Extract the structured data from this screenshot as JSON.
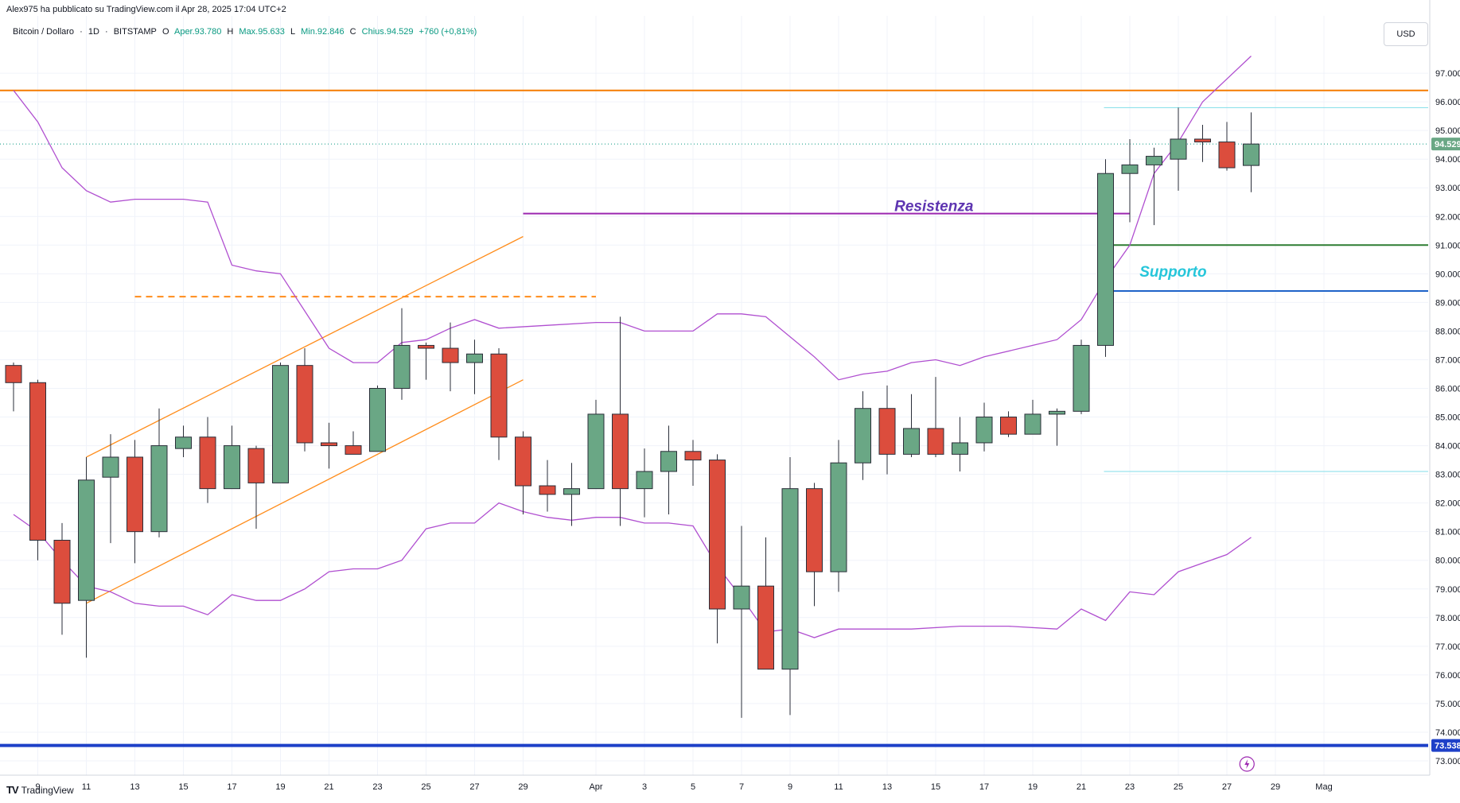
{
  "header": {
    "publisher_text": "Alex975 ha pubblicato su TradingView.com il Apr 28, 2025 17:04 UTC+2"
  },
  "legend": {
    "name": "Bitcoin / Dollaro",
    "interval": "1D",
    "exchange": "BITSTAMP",
    "open_label": "O",
    "open": "Aper.93.780",
    "high_label": "H",
    "high": "Max.95.633",
    "low_label": "L",
    "low": "Min.92.846",
    "close_label": "C",
    "close": "Chius.94.529",
    "change": "+760 (+0,81%)"
  },
  "currency": "USD",
  "footer": {
    "brand": "TradingView"
  },
  "colors": {
    "up": "#6aa785",
    "down": "#dc4d3d",
    "bollinger": "#b04fd0",
    "channel": "#ff8c1a",
    "resistance_line": "#9c27b0",
    "resistance_text": "#5e35b1",
    "support_text": "#26c6da",
    "green_level": "#2e7d32",
    "blue_level": "#1e63c8",
    "thick_level": "#1e40c8",
    "top_orange_level": "#f57c00"
  },
  "chart_data": {
    "type": "candlestick",
    "y_axis": {
      "min": 72.5,
      "max": 99.0,
      "ticks": [
        "97.000",
        "96.000",
        "95.000",
        "94.000",
        "93.000",
        "92.000",
        "91.000",
        "90.000",
        "89.000",
        "88.000",
        "87.000",
        "86.000",
        "85.000",
        "84.000",
        "83.000",
        "82.000",
        "81.000",
        "80.000",
        "79.000",
        "78.000",
        "77.000",
        "76.000",
        "75.000",
        "74.000",
        "73.000"
      ],
      "last_price_label": "94.529",
      "level_label": "73.538"
    },
    "x_axis": {
      "labels": [
        "9",
        "11",
        "13",
        "15",
        "17",
        "19",
        "21",
        "23",
        "25",
        "27",
        "29",
        "Apr",
        "3",
        "5",
        "7",
        "9",
        "11",
        "13",
        "15",
        "17",
        "19",
        "21",
        "23",
        "25",
        "27",
        "29",
        "Mag"
      ],
      "label_days": [
        -23,
        -21,
        -19,
        -17,
        -15,
        -13,
        -11,
        -9,
        -7,
        -5,
        -3,
        0,
        2,
        4,
        6,
        8,
        10,
        12,
        14,
        16,
        18,
        20,
        22,
        24,
        26,
        28,
        30
      ]
    },
    "candles": [
      {
        "d": -24,
        "o": 86.8,
        "h": 86.9,
        "l": 85.2,
        "c": 86.2
      },
      {
        "d": -23,
        "o": 86.2,
        "h": 86.3,
        "l": 80.0,
        "c": 80.7
      },
      {
        "d": -22,
        "o": 80.7,
        "h": 81.3,
        "l": 77.4,
        "c": 78.5
      },
      {
        "d": -21,
        "o": 78.6,
        "h": 83.6,
        "l": 76.6,
        "c": 82.8
      },
      {
        "d": -20,
        "o": 82.9,
        "h": 84.4,
        "l": 80.6,
        "c": 83.6
      },
      {
        "d": -19,
        "o": 83.6,
        "h": 84.2,
        "l": 79.9,
        "c": 81.0
      },
      {
        "d": -18,
        "o": 81.0,
        "h": 85.3,
        "l": 80.8,
        "c": 84.0
      },
      {
        "d": -17,
        "o": 83.9,
        "h": 84.7,
        "l": 83.6,
        "c": 84.3
      },
      {
        "d": -16,
        "o": 84.3,
        "h": 85.0,
        "l": 82.0,
        "c": 82.5
      },
      {
        "d": -15,
        "o": 82.5,
        "h": 84.7,
        "l": 82.5,
        "c": 84.0
      },
      {
        "d": -14,
        "o": 83.9,
        "h": 84.0,
        "l": 81.1,
        "c": 82.7
      },
      {
        "d": -13,
        "o": 82.7,
        "h": 86.9,
        "l": 82.7,
        "c": 86.8
      },
      {
        "d": -12,
        "o": 86.8,
        "h": 87.4,
        "l": 83.8,
        "c": 84.1
      },
      {
        "d": -11,
        "o": 84.1,
        "h": 84.8,
        "l": 83.2,
        "c": 84.0
      },
      {
        "d": -10,
        "o": 84.0,
        "h": 84.5,
        "l": 83.7,
        "c": 83.7
      },
      {
        "d": -9,
        "o": 83.8,
        "h": 86.1,
        "l": 83.8,
        "c": 86.0
      },
      {
        "d": -8,
        "o": 86.0,
        "h": 88.8,
        "l": 85.6,
        "c": 87.5
      },
      {
        "d": -7,
        "o": 87.5,
        "h": 87.6,
        "l": 86.3,
        "c": 87.4
      },
      {
        "d": -6,
        "o": 87.4,
        "h": 88.3,
        "l": 85.9,
        "c": 86.9
      },
      {
        "d": -5,
        "o": 86.9,
        "h": 87.7,
        "l": 85.8,
        "c": 87.2
      },
      {
        "d": -4,
        "o": 87.2,
        "h": 87.4,
        "l": 83.5,
        "c": 84.3
      },
      {
        "d": -3,
        "o": 84.3,
        "h": 84.5,
        "l": 81.6,
        "c": 82.6
      },
      {
        "d": -2,
        "o": 82.6,
        "h": 83.5,
        "l": 81.7,
        "c": 82.3
      },
      {
        "d": -1,
        "o": 82.3,
        "h": 83.4,
        "l": 81.2,
        "c": 82.5
      },
      {
        "d": 0,
        "o": 82.5,
        "h": 85.6,
        "l": 82.5,
        "c": 85.1
      },
      {
        "d": 1,
        "o": 85.1,
        "h": 88.5,
        "l": 81.2,
        "c": 82.5
      },
      {
        "d": 2,
        "o": 82.5,
        "h": 83.9,
        "l": 81.5,
        "c": 83.1
      },
      {
        "d": 3,
        "o": 83.1,
        "h": 84.7,
        "l": 81.6,
        "c": 83.8
      },
      {
        "d": 4,
        "o": 83.8,
        "h": 84.2,
        "l": 82.6,
        "c": 83.5
      },
      {
        "d": 5,
        "o": 83.5,
        "h": 83.7,
        "l": 77.1,
        "c": 78.3
      },
      {
        "d": 6,
        "o": 78.3,
        "h": 81.2,
        "l": 74.5,
        "c": 79.1
      },
      {
        "d": 7,
        "o": 79.1,
        "h": 80.8,
        "l": 76.2,
        "c": 76.2
      },
      {
        "d": 8,
        "o": 76.2,
        "h": 83.6,
        "l": 74.6,
        "c": 82.5
      },
      {
        "d": 9,
        "o": 82.5,
        "h": 82.7,
        "l": 78.4,
        "c": 79.6
      },
      {
        "d": 10,
        "o": 79.6,
        "h": 84.2,
        "l": 78.9,
        "c": 83.4
      },
      {
        "d": 11,
        "o": 83.4,
        "h": 85.9,
        "l": 82.8,
        "c": 85.3
      },
      {
        "d": 12,
        "o": 85.3,
        "h": 86.1,
        "l": 83.0,
        "c": 83.7
      },
      {
        "d": 13,
        "o": 83.7,
        "h": 85.8,
        "l": 83.6,
        "c": 84.6
      },
      {
        "d": 14,
        "o": 84.6,
        "h": 86.4,
        "l": 83.6,
        "c": 83.7
      },
      {
        "d": 15,
        "o": 83.7,
        "h": 85.0,
        "l": 83.1,
        "c": 84.1
      },
      {
        "d": 16,
        "o": 84.1,
        "h": 85.5,
        "l": 83.8,
        "c": 85.0
      },
      {
        "d": 17,
        "o": 85.0,
        "h": 85.2,
        "l": 84.3,
        "c": 84.4
      },
      {
        "d": 18,
        "o": 84.4,
        "h": 85.6,
        "l": 84.4,
        "c": 85.1
      },
      {
        "d": 19,
        "o": 85.1,
        "h": 85.3,
        "l": 84.0,
        "c": 85.2
      },
      {
        "d": 20,
        "o": 85.2,
        "h": 87.7,
        "l": 85.1,
        "c": 87.5
      },
      {
        "d": 21,
        "o": 87.5,
        "h": 94.0,
        "l": 87.1,
        "c": 93.5
      },
      {
        "d": 22,
        "o": 93.5,
        "h": 94.7,
        "l": 91.8,
        "c": 93.8
      },
      {
        "d": 23,
        "o": 93.8,
        "h": 94.4,
        "l": 91.7,
        "c": 94.1
      },
      {
        "d": 24,
        "o": 94.0,
        "h": 95.8,
        "l": 92.9,
        "c": 94.7
      },
      {
        "d": 25,
        "o": 94.7,
        "h": 95.2,
        "l": 93.9,
        "c": 94.6
      },
      {
        "d": 26,
        "o": 94.6,
        "h": 95.3,
        "l": 93.6,
        "c": 93.7
      },
      {
        "d": 27,
        "o": 93.78,
        "h": 95.633,
        "l": 92.846,
        "c": 94.529
      }
    ],
    "bollinger_upper": [
      [
        -24,
        96.4
      ],
      [
        -23,
        95.3
      ],
      [
        -22,
        93.7
      ],
      [
        -21,
        92.9
      ],
      [
        -20,
        92.5
      ],
      [
        -19,
        92.6
      ],
      [
        -17,
        92.6
      ],
      [
        -16,
        92.5
      ],
      [
        -15,
        90.3
      ],
      [
        -14,
        90.1
      ],
      [
        -13,
        90.0
      ],
      [
        -11,
        87.4
      ],
      [
        -10,
        86.9
      ],
      [
        -9,
        86.9
      ],
      [
        -8,
        87.6
      ],
      [
        -7,
        87.7
      ],
      [
        -6,
        88.1
      ],
      [
        -5,
        88.4
      ],
      [
        -4,
        88.1
      ],
      [
        -2,
        88.2
      ],
      [
        0,
        88.3
      ],
      [
        1,
        88.3
      ],
      [
        2,
        88.0
      ],
      [
        4,
        88.0
      ],
      [
        5,
        88.6
      ],
      [
        6,
        88.6
      ],
      [
        7,
        88.5
      ],
      [
        9,
        87.1
      ],
      [
        10,
        86.3
      ],
      [
        11,
        86.5
      ],
      [
        12,
        86.6
      ],
      [
        13,
        86.9
      ],
      [
        14,
        87.0
      ],
      [
        15,
        86.8
      ],
      [
        16,
        87.1
      ],
      [
        18,
        87.5
      ],
      [
        19,
        87.7
      ],
      [
        20,
        88.4
      ],
      [
        21,
        89.8
      ],
      [
        22,
        91.0
      ],
      [
        23,
        93.5
      ],
      [
        24,
        94.6
      ],
      [
        25,
        96.0
      ],
      [
        26,
        96.8
      ],
      [
        27,
        97.6
      ]
    ],
    "bollinger_lower": [
      [
        -24,
        81.6
      ],
      [
        -23,
        81.0
      ],
      [
        -22,
        80.0
      ],
      [
        -21,
        79.1
      ],
      [
        -20,
        78.9
      ],
      [
        -19,
        78.5
      ],
      [
        -18,
        78.4
      ],
      [
        -17,
        78.4
      ],
      [
        -16,
        78.1
      ],
      [
        -15,
        78.8
      ],
      [
        -14,
        78.6
      ],
      [
        -13,
        78.6
      ],
      [
        -12,
        79.0
      ],
      [
        -11,
        79.6
      ],
      [
        -10,
        79.7
      ],
      [
        -9,
        79.7
      ],
      [
        -8,
        80.0
      ],
      [
        -7,
        81.1
      ],
      [
        -6,
        81.3
      ],
      [
        -5,
        81.3
      ],
      [
        -4,
        82.0
      ],
      [
        -3,
        81.7
      ],
      [
        -2,
        81.5
      ],
      [
        -1,
        81.4
      ],
      [
        0,
        81.5
      ],
      [
        1,
        81.5
      ],
      [
        2,
        81.3
      ],
      [
        3,
        81.3
      ],
      [
        4,
        81.2
      ],
      [
        5,
        79.8
      ],
      [
        6,
        78.7
      ],
      [
        7,
        77.5
      ],
      [
        8,
        77.6
      ],
      [
        9,
        77.3
      ],
      [
        10,
        77.6
      ],
      [
        11,
        77.6
      ],
      [
        13,
        77.6
      ],
      [
        15,
        77.7
      ],
      [
        17,
        77.7
      ],
      [
        19,
        77.6
      ],
      [
        20,
        78.3
      ],
      [
        21,
        77.9
      ],
      [
        22,
        78.9
      ],
      [
        23,
        78.8
      ],
      [
        24,
        79.6
      ],
      [
        25,
        79.9
      ],
      [
        26,
        80.2
      ],
      [
        27,
        80.8
      ]
    ],
    "channel_upper": [
      [
        -21,
        83.6
      ],
      [
        -3,
        91.3
      ]
    ],
    "channel_lower": [
      [
        -21,
        78.5
      ],
      [
        -3,
        86.3
      ]
    ],
    "dashed_level": {
      "from": -19,
      "to": 0,
      "value": 89.2
    },
    "resistance": {
      "label": "Resistenza",
      "from": -3,
      "to": 22,
      "value": 92.1
    },
    "support": {
      "label": "Supporto",
      "value": 89.4
    },
    "green_level": 91.0,
    "cyan_upper_level": 95.8,
    "cyan_lower_level": 83.1,
    "top_orange_level": 96.4,
    "thick_blue_level": 73.538,
    "last_price": 94.529
  }
}
